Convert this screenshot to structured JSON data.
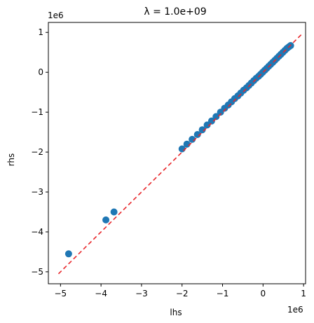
{
  "chart_data": {
    "type": "scatter",
    "title": "λ = 1.0e+09",
    "xlabel": "lhs",
    "ylabel": "rhs",
    "x_offset_label": "1e6",
    "y_offset_label": "1e6",
    "xlim": [
      -5.3,
      1.05
    ],
    "ylim": [
      -5.3,
      1.25
    ],
    "x_ticks": [
      -5,
      -4,
      -3,
      -2,
      -1,
      0,
      1
    ],
    "y_ticks": [
      -5,
      -4,
      -3,
      -2,
      -1,
      0,
      1
    ],
    "x_tick_labels": [
      "−5",
      "−4",
      "−3",
      "−2",
      "−1",
      "0",
      "1"
    ],
    "y_tick_labels": [
      "−5",
      "−4",
      "−3",
      "−2",
      "−1",
      "0",
      "1"
    ],
    "grid": false,
    "marker_color": "#1f77b4",
    "line_color": "#e8262a",
    "reference_line": {
      "style": "dashed",
      "x": [
        -5.05,
        0.95
      ],
      "y": [
        -5.05,
        0.95
      ]
    },
    "points": [
      [
        -4.8,
        -4.55
      ],
      [
        -3.88,
        -3.7
      ],
      [
        -3.68,
        -3.5
      ],
      [
        -2.0,
        -1.92
      ],
      [
        -1.88,
        -1.8
      ],
      [
        -1.75,
        -1.68
      ],
      [
        -1.62,
        -1.56
      ],
      [
        -1.5,
        -1.44
      ],
      [
        -1.38,
        -1.32
      ],
      [
        -1.27,
        -1.22
      ],
      [
        -1.16,
        -1.11
      ],
      [
        -1.05,
        -1.0
      ],
      [
        -0.95,
        -0.9
      ],
      [
        -0.86,
        -0.82
      ],
      [
        -0.78,
        -0.74
      ],
      [
        -0.7,
        -0.66
      ],
      [
        -0.62,
        -0.59
      ],
      [
        -0.55,
        -0.52
      ],
      [
        -0.48,
        -0.45
      ],
      [
        -0.41,
        -0.39
      ],
      [
        -0.35,
        -0.33
      ],
      [
        -0.29,
        -0.27
      ],
      [
        -0.23,
        -0.21
      ],
      [
        -0.17,
        -0.15
      ],
      [
        -0.11,
        -0.1
      ],
      [
        -0.06,
        -0.05
      ],
      [
        -0.01,
        0.0
      ],
      [
        0.04,
        0.05
      ],
      [
        0.09,
        0.1
      ],
      [
        0.14,
        0.15
      ],
      [
        0.19,
        0.2
      ],
      [
        0.24,
        0.25
      ],
      [
        0.29,
        0.3
      ],
      [
        0.34,
        0.35
      ],
      [
        0.39,
        0.4
      ],
      [
        0.44,
        0.45
      ],
      [
        0.49,
        0.5
      ],
      [
        0.54,
        0.55
      ],
      [
        0.59,
        0.6
      ],
      [
        0.64,
        0.64
      ],
      [
        0.68,
        0.67
      ]
    ]
  }
}
